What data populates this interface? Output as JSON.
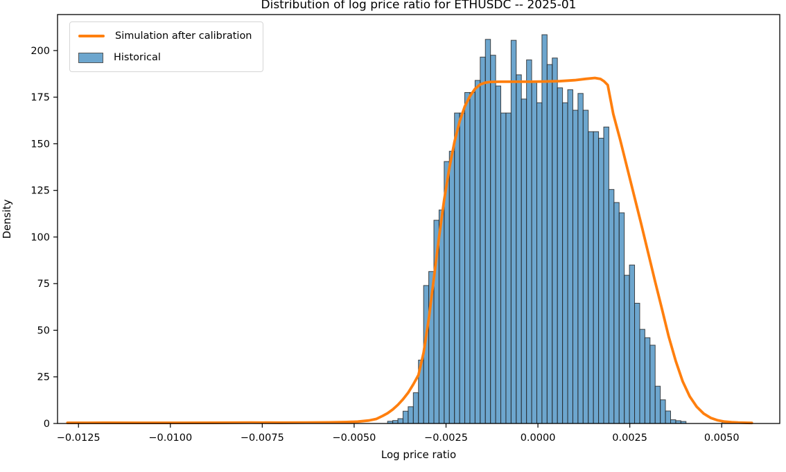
{
  "title": "Distribution of log price ratio for ETHUSDC -- 2025-01",
  "xlabel": "Log price ratio",
  "ylabel": "Density",
  "legend": [
    {
      "label": "Simulation after calibration",
      "swatch": "line",
      "color": "#ff7f0e"
    },
    {
      "label": "Historical",
      "swatch": "patch",
      "color": "rgba(31,119,180,0.65)",
      "edge": "#555555"
    }
  ],
  "colors": {
    "bar_fill": "rgba(31,119,180,0.65)",
    "bar_edge": "rgba(40,40,40,0.85)",
    "curve": "#ff7f0e",
    "spine": "#000000",
    "text": "#000000"
  },
  "chart_data": {
    "type": "histogram+line",
    "title": "Distribution of log price ratio for ETHUSDC -- 2025-01",
    "xlabel": "Log price ratio",
    "ylabel": "Density",
    "xlim": [
      -0.01307,
      0.00658
    ],
    "ylim": [
      0,
      219.3
    ],
    "grid": false,
    "legend_position": "upper left",
    "x_ticks": [
      -0.0125,
      -0.01,
      -0.0075,
      -0.005,
      -0.0025,
      0.0,
      0.0025,
      0.005
    ],
    "x_tick_labels": [
      "−0.0125",
      "−0.0100",
      "−0.0075",
      "−0.0050",
      "−0.0025",
      "0.0000",
      "0.0025",
      "0.0050"
    ],
    "y_ticks": [
      0,
      25,
      50,
      75,
      100,
      125,
      150,
      175,
      200
    ],
    "y_tick_labels": [
      "0",
      "25",
      "50",
      "75",
      "100",
      "125",
      "150",
      "175",
      "200"
    ],
    "bin_width": 0.00014,
    "series": [
      {
        "name": "Historical",
        "type": "bar",
        "note": "pairs of [bin_left_value, density]; bins not listed have density 0",
        "bars": [
          [
            -0.01204,
            0.7
          ],
          [
            -0.0119,
            0.7
          ],
          [
            -0.0112,
            0.6
          ],
          [
            -0.01106,
            0.6
          ],
          [
            -0.01092,
            0.6
          ],
          [
            -0.00756,
            0.6
          ],
          [
            -0.00409,
            1.2
          ],
          [
            -0.00395,
            1.6
          ],
          [
            -0.00381,
            2.6
          ],
          [
            -0.00367,
            6.6
          ],
          [
            -0.00353,
            9.0
          ],
          [
            -0.00339,
            16.5
          ],
          [
            -0.00325,
            34.0
          ],
          [
            -0.00311,
            74.0
          ],
          [
            -0.00297,
            81.5
          ],
          [
            -0.00283,
            109.0
          ],
          [
            -0.00269,
            114.5
          ],
          [
            -0.00255,
            140.5
          ],
          [
            -0.00241,
            146.0
          ],
          [
            -0.00227,
            166.5
          ],
          [
            -0.00213,
            166.5
          ],
          [
            -0.00199,
            177.5
          ],
          [
            -0.00185,
            177.5
          ],
          [
            -0.00171,
            184.0
          ],
          [
            -0.00157,
            196.5
          ],
          [
            -0.00143,
            206.0
          ],
          [
            -0.00129,
            197.5
          ],
          [
            -0.00115,
            181.0
          ],
          [
            -0.00101,
            166.5
          ],
          [
            -0.00087,
            166.5
          ],
          [
            -0.00073,
            205.5
          ],
          [
            -0.00059,
            187.0
          ],
          [
            -0.00045,
            174.0
          ],
          [
            -0.00031,
            195.0
          ],
          [
            -0.00017,
            183.0
          ],
          [
            -3e-05,
            172.0
          ],
          [
            0.00011,
            208.5
          ],
          [
            0.00025,
            192.5
          ],
          [
            0.00039,
            196.0
          ],
          [
            0.00053,
            180.0
          ],
          [
            0.00067,
            172.0
          ],
          [
            0.00081,
            179.0
          ],
          [
            0.00095,
            168.0
          ],
          [
            0.00109,
            177.0
          ],
          [
            0.00123,
            168.0
          ],
          [
            0.00137,
            156.5
          ],
          [
            0.00151,
            156.5
          ],
          [
            0.00165,
            153.0
          ],
          [
            0.00179,
            159.0
          ],
          [
            0.00193,
            125.5
          ],
          [
            0.00207,
            118.5
          ],
          [
            0.00221,
            113.0
          ],
          [
            0.00235,
            79.5
          ],
          [
            0.00249,
            85.0
          ],
          [
            0.00263,
            64.5
          ],
          [
            0.00277,
            50.5
          ],
          [
            0.00291,
            46.0
          ],
          [
            0.00305,
            42.0
          ],
          [
            0.00319,
            20.0
          ],
          [
            0.00333,
            12.7
          ],
          [
            0.00347,
            6.7
          ],
          [
            0.00361,
            2.0
          ],
          [
            0.00375,
            1.5
          ],
          [
            0.00389,
            1.1
          ],
          [
            0.00501,
            1.3
          ],
          [
            0.00515,
            0.9
          ]
        ]
      },
      {
        "name": "Simulation after calibration",
        "type": "line",
        "points": [
          [
            -0.0128,
            0.35
          ],
          [
            -0.0118,
            0.4
          ],
          [
            -0.0108,
            0.35
          ],
          [
            -0.0098,
            0.35
          ],
          [
            -0.0088,
            0.4
          ],
          [
            -0.0078,
            0.5
          ],
          [
            -0.007,
            0.45
          ],
          [
            -0.0063,
            0.5
          ],
          [
            -0.0057,
            0.6
          ],
          [
            -0.0052,
            0.8
          ],
          [
            -0.0049,
            1.0
          ],
          [
            -0.0046,
            1.6
          ],
          [
            -0.0044,
            2.4
          ],
          [
            -0.00422,
            4.1
          ],
          [
            -0.00409,
            5.5
          ],
          [
            -0.00395,
            7.5
          ],
          [
            -0.00381,
            10.0
          ],
          [
            -0.00367,
            13.0
          ],
          [
            -0.00353,
            16.5
          ],
          [
            -0.00339,
            21.0
          ],
          [
            -0.00325,
            26.0
          ],
          [
            -0.00311,
            38.0
          ],
          [
            -0.00297,
            56.0
          ],
          [
            -0.00283,
            78.0
          ],
          [
            -0.00269,
            100.0
          ],
          [
            -0.00255,
            120.0
          ],
          [
            -0.00241,
            137.0
          ],
          [
            -0.00227,
            151.0
          ],
          [
            -0.00213,
            162.0
          ],
          [
            -0.00199,
            170.0
          ],
          [
            -0.00185,
            175.5
          ],
          [
            -0.00171,
            179.5
          ],
          [
            -0.00157,
            181.8
          ],
          [
            -0.00143,
            182.8
          ],
          [
            -0.00129,
            183.2
          ],
          [
            -0.001,
            183.3
          ],
          [
            -0.0006,
            183.3
          ],
          [
            -0.0002,
            183.3
          ],
          [
            0.0002,
            183.4
          ],
          [
            0.0006,
            183.6
          ],
          [
            0.001,
            184.1
          ],
          [
            0.0013,
            184.8
          ],
          [
            0.00155,
            185.3
          ],
          [
            0.0017,
            184.8
          ],
          [
            0.0018,
            183.5
          ],
          [
            0.0019,
            181.5
          ],
          [
            0.00205,
            166.0
          ],
          [
            0.00224,
            152.0
          ],
          [
            0.00243,
            137.0
          ],
          [
            0.00262,
            122.0
          ],
          [
            0.00281,
            107.0
          ],
          [
            0.003,
            91.5
          ],
          [
            0.00319,
            76.0
          ],
          [
            0.00338,
            61.0
          ],
          [
            0.00356,
            46.5
          ],
          [
            0.00375,
            33.5
          ],
          [
            0.00394,
            22.5
          ],
          [
            0.00413,
            14.5
          ],
          [
            0.00432,
            9.0
          ],
          [
            0.00451,
            5.3
          ],
          [
            0.0047,
            3.0
          ],
          [
            0.00489,
            1.7
          ],
          [
            0.00508,
            1.0
          ],
          [
            0.00527,
            0.7
          ],
          [
            0.00545,
            0.5
          ],
          [
            0.0057,
            0.35
          ],
          [
            0.00582,
            0.3
          ]
        ]
      }
    ]
  }
}
